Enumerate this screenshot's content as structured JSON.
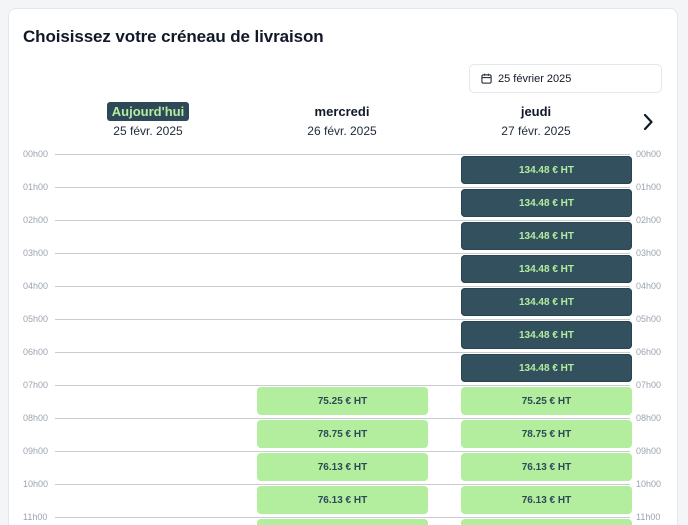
{
  "title": "Choisissez votre créneau de livraison",
  "date_picker": {
    "value": "25 février 2025",
    "icon": "calendar-icon"
  },
  "days": [
    {
      "name": "Aujourd'hui",
      "date": "25 févr. 2025",
      "today": true
    },
    {
      "name": "mercredi",
      "date": "26 févr. 2025",
      "today": false
    },
    {
      "name": "jeudi",
      "date": "27 févr. 2025",
      "today": false
    }
  ],
  "next_icon": "chevron-right-icon",
  "hours": [
    "00h00",
    "01h00",
    "02h00",
    "03h00",
    "04h00",
    "05h00",
    "06h00",
    "07h00",
    "08h00",
    "09h00",
    "10h00",
    "11h00"
  ],
  "slots": {
    "mercredi": [
      {
        "hour": 7,
        "price": "75.25 € HT",
        "style": "light"
      },
      {
        "hour": 8,
        "price": "78.75 € HT",
        "style": "light"
      },
      {
        "hour": 9,
        "price": "76.13 € HT",
        "style": "light"
      },
      {
        "hour": 10,
        "price": "76.13 € HT",
        "style": "light"
      },
      {
        "hour": 11,
        "price": "",
        "style": "light"
      }
    ],
    "jeudi": [
      {
        "hour": 0,
        "price": "134.48 € HT",
        "style": "dark"
      },
      {
        "hour": 1,
        "price": "134.48 € HT",
        "style": "dark"
      },
      {
        "hour": 2,
        "price": "134.48 € HT",
        "style": "dark"
      },
      {
        "hour": 3,
        "price": "134.48 € HT",
        "style": "dark"
      },
      {
        "hour": 4,
        "price": "134.48 € HT",
        "style": "dark"
      },
      {
        "hour": 5,
        "price": "134.48 € HT",
        "style": "dark"
      },
      {
        "hour": 6,
        "price": "134.48 € HT",
        "style": "dark"
      },
      {
        "hour": 7,
        "price": "75.25 € HT",
        "style": "light"
      },
      {
        "hour": 8,
        "price": "78.75 € HT",
        "style": "light"
      },
      {
        "hour": 9,
        "price": "76.13 € HT",
        "style": "light"
      },
      {
        "hour": 10,
        "price": "76.13 € HT",
        "style": "light"
      },
      {
        "hour": 11,
        "price": "",
        "style": "light"
      }
    ]
  }
}
